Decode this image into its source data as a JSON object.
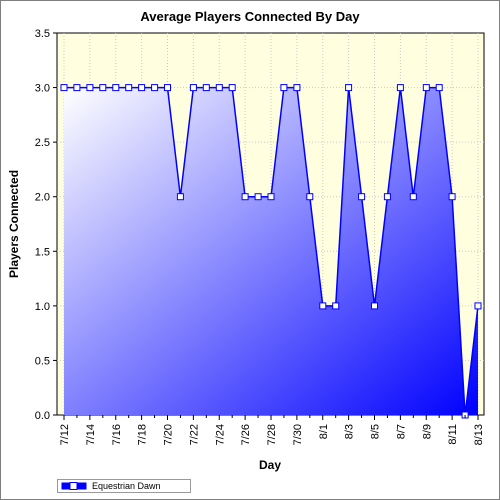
{
  "chart_data": {
    "type": "area",
    "title": "Average Players Connected By Day",
    "xlabel": "Day",
    "ylabel": "Players Connected",
    "ylim": [
      0,
      3.5
    ],
    "yticks": [
      "0.0",
      "0.5",
      "1.0",
      "1.5",
      "2.0",
      "2.5",
      "3.0",
      "3.5"
    ],
    "xtick_labels": [
      "7/12",
      "7/14",
      "7/16",
      "7/18",
      "7/20",
      "7/22",
      "7/24",
      "7/26",
      "7/28",
      "7/30",
      "8/1",
      "8/3",
      "8/5",
      "8/7",
      "8/9",
      "8/11",
      "8/13"
    ],
    "grid": true,
    "legend_position": "bottom-left",
    "x": [
      "7/12",
      "7/13",
      "7/14",
      "7/15",
      "7/16",
      "7/17",
      "7/18",
      "7/19",
      "7/20",
      "7/21",
      "7/22",
      "7/23",
      "7/24",
      "7/25",
      "7/26",
      "7/27",
      "7/28",
      "7/29",
      "7/30",
      "7/31",
      "8/1",
      "8/2",
      "8/3",
      "8/4",
      "8/5",
      "8/6",
      "8/7",
      "8/8",
      "8/9",
      "8/10",
      "8/11",
      "8/12",
      "8/13"
    ],
    "series": [
      {
        "name": "Equestrian Dawn",
        "values": [
          3,
          3,
          3,
          3,
          3,
          3,
          3,
          3,
          3,
          2,
          3,
          3,
          3,
          3,
          2,
          2,
          2,
          3,
          3,
          2,
          1,
          1,
          3,
          2,
          1,
          2,
          3,
          2,
          3,
          3,
          2,
          0,
          1
        ]
      }
    ]
  },
  "colors": {
    "plot_background": "#ffffdf",
    "line": "#0000ff",
    "fill_light": "#ffffff",
    "fill_dark": "#0000ff",
    "marker_fill": "#ffffff",
    "marker_stroke": "#0000ff"
  }
}
